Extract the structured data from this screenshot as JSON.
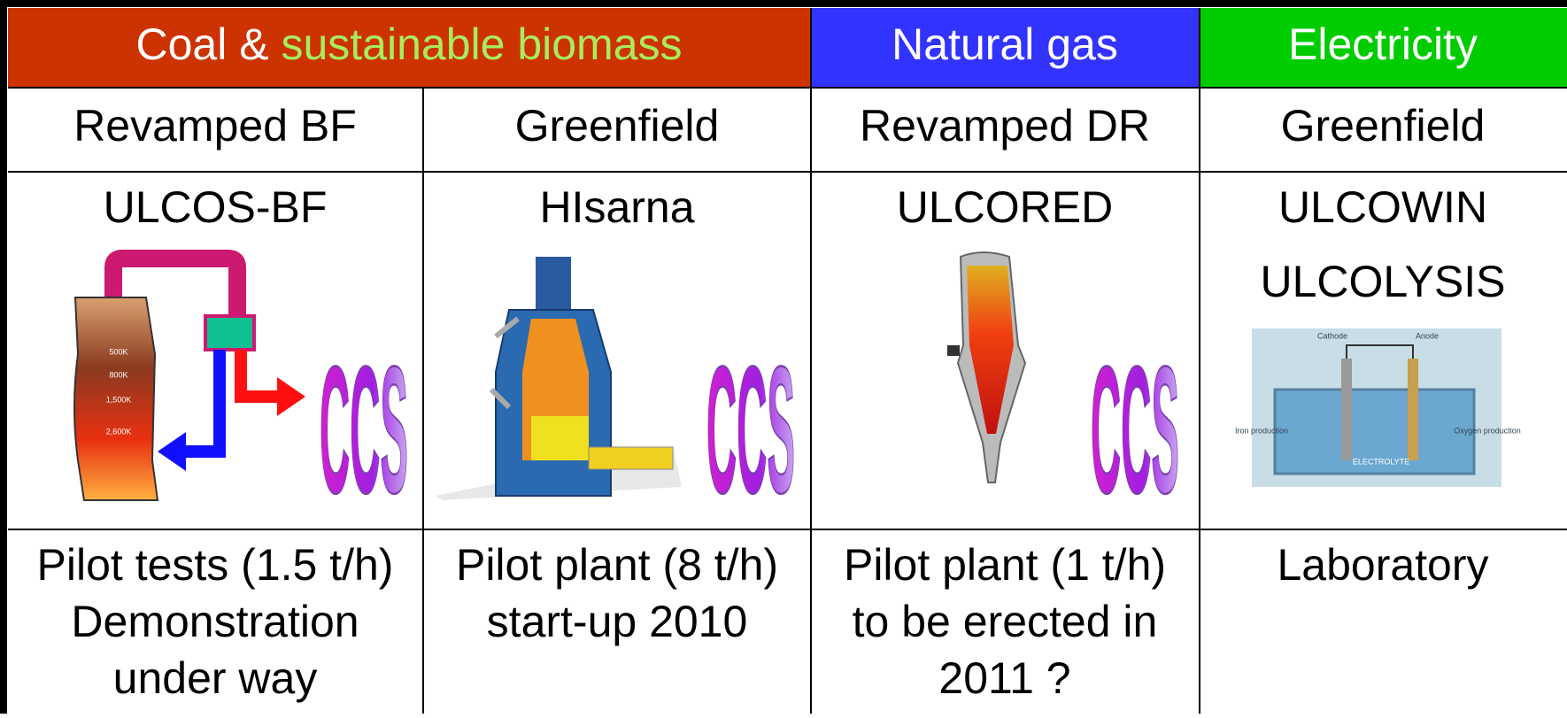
{
  "header": {
    "groups": [
      {
        "label": "Coal & ",
        "highlight": "sustainable biomass"
      },
      {
        "label": "Natural gas"
      },
      {
        "label": "Electricity"
      }
    ]
  },
  "columns": [
    {
      "subtitle": "Revamped BF",
      "process": [
        "ULCOS-BF"
      ],
      "ccs": "CCS",
      "status": [
        "Pilot tests (1.5 t/h)",
        "Demonstration",
        "under way"
      ],
      "figure_labels": [
        "500K",
        "800K",
        "1,500K",
        "2,600K"
      ]
    },
    {
      "subtitle": "Greenfield",
      "process": [
        "HIsarna"
      ],
      "ccs": "CCS",
      "status": [
        "Pilot plant (8 t/h)",
        "start-up 2010"
      ]
    },
    {
      "subtitle": "Revamped DR",
      "process": [
        "ULCORED"
      ],
      "ccs": "CCS",
      "status": [
        "Pilot plant (1 t/h)",
        "to be erected in",
        "2011 ?"
      ]
    },
    {
      "subtitle": "Greenfield",
      "process": [
        "ULCOWIN",
        "ULCOLYSIS"
      ],
      "status": [
        "Laboratory"
      ],
      "figure_labels": [
        "Cathode",
        "Anode",
        "Iron production",
        "Oxygen production",
        "ELECTROLYTE"
      ]
    }
  ]
}
